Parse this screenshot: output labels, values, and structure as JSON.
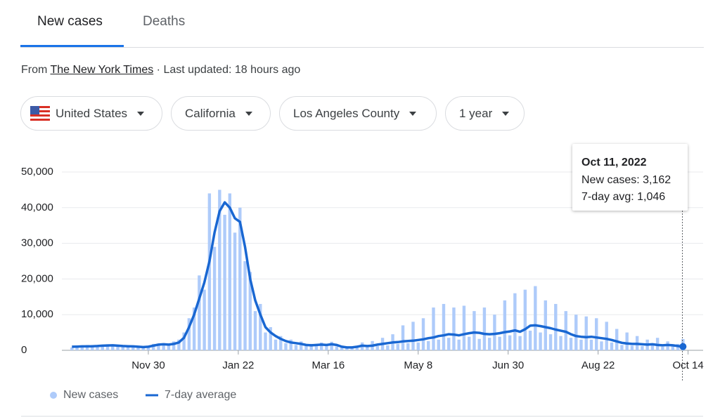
{
  "tabs": [
    "New cases",
    "Deaths"
  ],
  "source": {
    "prefix": "From",
    "link": "The New York Times",
    "updated": "· Last updated: 18 hours ago"
  },
  "filters": [
    "United States",
    "California",
    "Los Angeles County",
    "1 year"
  ],
  "chart_data": {
    "type": "bar-line",
    "x": [
      2,
      5,
      8,
      11,
      14,
      17,
      20,
      23,
      26,
      29,
      32,
      35,
      38,
      41,
      44,
      47,
      50,
      53,
      56,
      59,
      62,
      65,
      68,
      71,
      74,
      77,
      80,
      83,
      86,
      89,
      92,
      95,
      98,
      101,
      104,
      107,
      110,
      113,
      116,
      119,
      122,
      125,
      128,
      131,
      134,
      137,
      140,
      143,
      146,
      149,
      152,
      155,
      158,
      161,
      164,
      167,
      170,
      173,
      176,
      179,
      182,
      185,
      188,
      191,
      194,
      197,
      200,
      203,
      206,
      209,
      212,
      215,
      218,
      221,
      224,
      227,
      230,
      233,
      236,
      239,
      242,
      245,
      248,
      251,
      254,
      257,
      260,
      263,
      266,
      269,
      272,
      275,
      278,
      281,
      284,
      287,
      290,
      293,
      296,
      299,
      302,
      305,
      308,
      311,
      314,
      317,
      320,
      323,
      326,
      329,
      332,
      335,
      338,
      341,
      344,
      347,
      350,
      353,
      356,
      359,
      362
    ],
    "series": [
      {
        "name": "New cases",
        "color": "#aecbfa",
        "values": [
          800,
          1300,
          900,
          1500,
          1000,
          1400,
          1200,
          1700,
          1300,
          1500,
          1000,
          1300,
          900,
          1200,
          700,
          1300,
          1800,
          1400,
          2000,
          1500,
          2500,
          3000,
          5000,
          9000,
          12000,
          21000,
          17000,
          44000,
          29000,
          45000,
          38000,
          44000,
          33000,
          40000,
          25000,
          22000,
          11000,
          13000,
          5000,
          6500,
          3000,
          4000,
          2000,
          3000,
          1500,
          2500,
          1200,
          1800,
          1300,
          2200,
          1200,
          2400,
          1100,
          1300,
          600,
          1100,
          700,
          2200,
          900,
          2600,
          1200,
          3500,
          1400,
          4500,
          1800,
          7000,
          2000,
          8000,
          2200,
          9000,
          2600,
          12000,
          3000,
          13000,
          3500,
          12000,
          3000,
          12500,
          3800,
          11000,
          3200,
          12000,
          3500,
          10000,
          3800,
          14000,
          4200,
          16000,
          4000,
          17000,
          5500,
          18000,
          5000,
          14000,
          4500,
          13000,
          4000,
          11000,
          3500,
          10000,
          3000,
          9500,
          3000,
          9000,
          2500,
          8000,
          2200,
          6000,
          1500,
          5000,
          1300,
          4000,
          1200,
          3000,
          1500,
          3500,
          1000,
          2500,
          1200,
          1800,
          3162
        ]
      },
      {
        "name": "7-day average",
        "color": "#1967d2",
        "values": [
          1000,
          1050,
          1100,
          1100,
          1150,
          1200,
          1300,
          1350,
          1400,
          1300,
          1200,
          1150,
          1100,
          1000,
          900,
          1000,
          1300,
          1600,
          1700,
          1600,
          1800,
          2200,
          3500,
          6500,
          10000,
          14500,
          19000,
          25000,
          33000,
          39000,
          41500,
          40000,
          37000,
          36000,
          29000,
          20000,
          14000,
          10000,
          6500,
          5000,
          4000,
          3200,
          2600,
          2200,
          2000,
          1800,
          1500,
          1400,
          1500,
          1600,
          1500,
          1700,
          1500,
          1000,
          800,
          800,
          1000,
          1300,
          1200,
          1300,
          1600,
          1800,
          2000,
          2200,
          2300,
          2500,
          2600,
          2700,
          2900,
          3100,
          3400,
          3600,
          4000,
          4200,
          4500,
          4400,
          4200,
          4500,
          4800,
          5000,
          4900,
          4600,
          4500,
          4600,
          4800,
          5100,
          5300,
          5600,
          5200,
          5900,
          6900,
          7000,
          6800,
          6500,
          6200,
          5800,
          5500,
          5200,
          4500,
          4000,
          3800,
          3700,
          3800,
          3600,
          3400,
          3200,
          2900,
          2500,
          2100,
          1900,
          1800,
          1800,
          1700,
          1600,
          1700,
          1500,
          1400,
          1500,
          1400,
          1200,
          1046
        ]
      }
    ],
    "xlim": [
      0,
      366
    ],
    "xticks": [
      {
        "value": 47,
        "label": "Nov 30"
      },
      {
        "value": 100,
        "label": "Jan 22"
      },
      {
        "value": 153,
        "label": "Mar 16"
      },
      {
        "value": 206,
        "label": "May 8"
      },
      {
        "value": 259,
        "label": "Jun 30"
      },
      {
        "value": 312,
        "label": "Aug 22"
      },
      {
        "value": 365,
        "label": "Oct 14"
      }
    ],
    "ylim": [
      0,
      50000
    ],
    "yticks": [
      0,
      {
        "value": 10000,
        "label": "10,000"
      },
      {
        "value": 20000,
        "label": "20,000"
      },
      {
        "value": 30000,
        "label": "30,000"
      },
      {
        "value": 40000,
        "label": "40,000"
      },
      {
        "value": 50000,
        "label": "50,000"
      }
    ],
    "grid": true,
    "tooltip": [
      "Oct 11, 2022",
      "New cases: 3,162",
      "7-day avg: 1,046"
    ]
  }
}
